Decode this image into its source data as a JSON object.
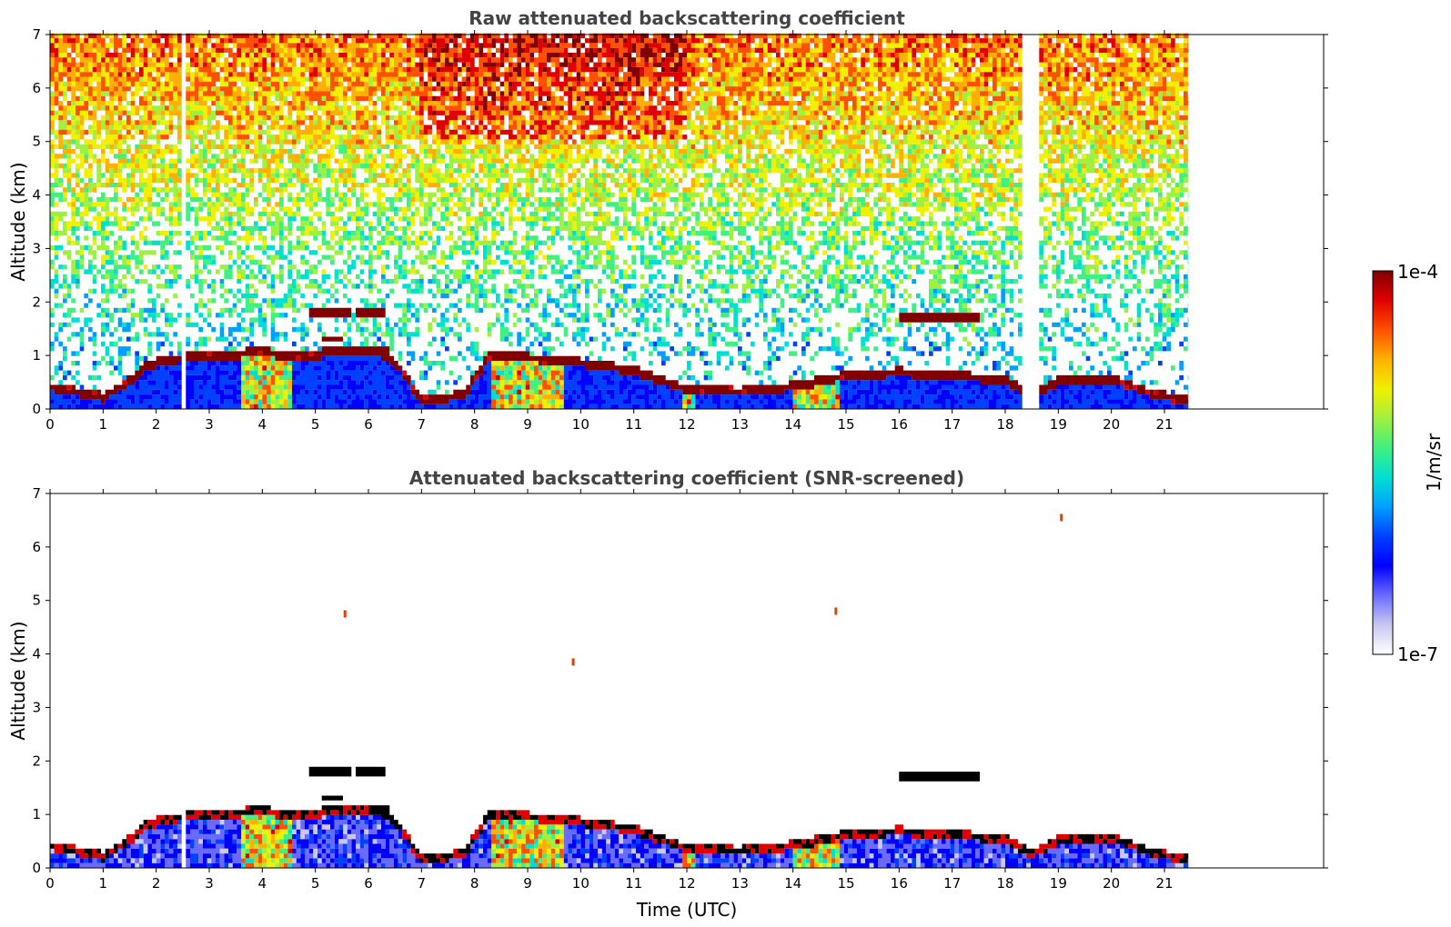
{
  "chart_data": [
    {
      "type": "heatmap",
      "title": "Raw attenuated backscattering coefficient",
      "xlabel": "",
      "ylabel": "Altitude (km)",
      "xlim": [
        0,
        24
      ],
      "ylim": [
        0,
        7
      ],
      "xticks": [
        "0",
        "1",
        "2",
        "3",
        "4",
        "5",
        "6",
        "7",
        "8",
        "9",
        "10",
        "11",
        "12",
        "13",
        "14",
        "15",
        "16",
        "17",
        "18",
        "19",
        "20",
        "21"
      ],
      "yticks": [
        "0",
        "1",
        "2",
        "3",
        "4",
        "5",
        "6",
        "7"
      ],
      "data_end_time": 21.45,
      "gaps": [
        [
          2.45,
          2.57
        ],
        [
          18.35,
          18.6
        ]
      ],
      "features": {
        "boundary_layer_top_km": [
          [
            0.0,
            0.45
          ],
          [
            0.5,
            0.35
          ],
          [
            1.0,
            0.25
          ],
          [
            1.5,
            0.55
          ],
          [
            1.8,
            0.85
          ],
          [
            2.4,
            0.98
          ],
          [
            3.0,
            1.02
          ],
          [
            4.0,
            1.1
          ],
          [
            4.8,
            1.0
          ],
          [
            5.5,
            1.15
          ],
          [
            6.2,
            1.1
          ],
          [
            6.6,
            0.8
          ],
          [
            7.0,
            0.18
          ],
          [
            7.8,
            0.3
          ],
          [
            8.3,
            1.05
          ],
          [
            9.5,
            0.95
          ],
          [
            10.0,
            0.9
          ],
          [
            11.0,
            0.75
          ],
          [
            12.0,
            0.4
          ],
          [
            13.0,
            0.35
          ],
          [
            14.0,
            0.45
          ],
          [
            15.0,
            0.65
          ],
          [
            16.0,
            0.72
          ],
          [
            17.0,
            0.65
          ],
          [
            18.0,
            0.58
          ],
          [
            18.5,
            0.3
          ],
          [
            19.0,
            0.55
          ],
          [
            20.0,
            0.6
          ],
          [
            20.8,
            0.3
          ],
          [
            21.45,
            0.2
          ]
        ],
        "elevated_layers": [
          {
            "t0": 4.9,
            "t1": 5.7,
            "alt_km": 1.8
          },
          {
            "t0": 5.75,
            "t1": 6.3,
            "alt_km": 1.8
          },
          {
            "t0": 16.0,
            "t1": 17.5,
            "alt_km": 1.72
          },
          {
            "t0": 5.1,
            "t1": 5.5,
            "alt_km": 1.3
          },
          {
            "t0": 6.0,
            "t1": 6.4,
            "alt_km": 1.05
          }
        ],
        "convective_plumes": [
          [
            3.6,
            4.6
          ],
          [
            8.3,
            9.7
          ],
          [
            11.9,
            12.2
          ],
          [
            14.0,
            14.9
          ]
        ]
      }
    },
    {
      "type": "heatmap",
      "title": "Attenuated backscattering coefficient (SNR-screened)",
      "xlabel": "Time (UTC)",
      "ylabel": "Altitude (km)",
      "xlim": [
        0,
        24
      ],
      "ylim": [
        0,
        7
      ],
      "xticks": [
        "0",
        "1",
        "2",
        "3",
        "4",
        "5",
        "6",
        "7",
        "8",
        "9",
        "10",
        "11",
        "12",
        "13",
        "14",
        "15",
        "16",
        "17",
        "18",
        "19",
        "20",
        "21"
      ],
      "yticks": [
        "0",
        "1",
        "2",
        "3",
        "4",
        "5",
        "6",
        "7"
      ],
      "data_end_time": 21.45,
      "gaps": [
        [
          2.45,
          2.57
        ]
      ],
      "isolated_points": [
        [
          14.8,
          4.8
        ],
        [
          19.05,
          6.55
        ],
        [
          9.85,
          3.85
        ],
        [
          5.55,
          4.75
        ]
      ]
    }
  ],
  "colorbar": {
    "label": "1/m/sr",
    "max_label": "1e-4",
    "min_label": "1e-7",
    "scale": "log",
    "range": [
      1e-07,
      0.0001
    ],
    "colors": [
      "#ffffff",
      "#c8c8f0",
      "#6a6aff",
      "#0000ff",
      "#0040ff",
      "#00a0ff",
      "#00e0d0",
      "#40f080",
      "#a0f040",
      "#f0f000",
      "#ffb000",
      "#ff5000",
      "#e00000",
      "#800000"
    ]
  }
}
